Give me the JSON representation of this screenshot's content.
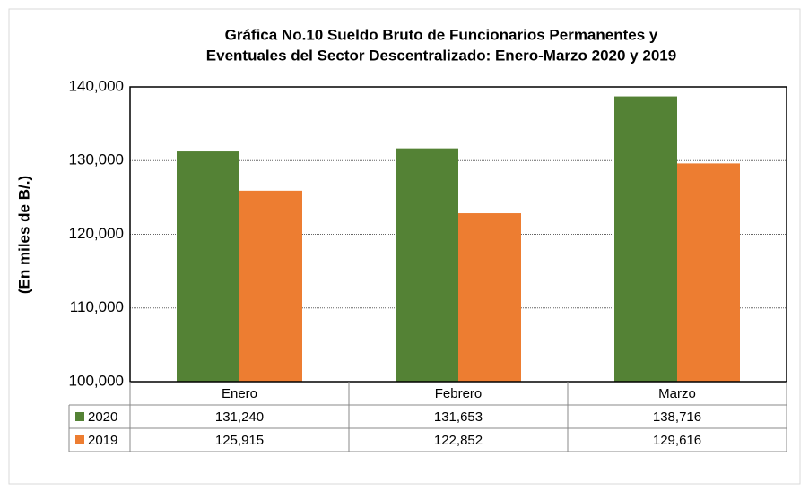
{
  "chart_data": {
    "type": "bar",
    "title": [
      "Gráfica No.10 Sueldo Bruto de Funcionarios Permanentes y",
      "Eventuales del Sector Descentralizado: Enero-Marzo 2020 y 2019"
    ],
    "ylabel": "(En miles de B/.)",
    "categories": [
      "Enero",
      "Febrero",
      "Marzo"
    ],
    "series": [
      {
        "name": "2020",
        "color": "#548235",
        "values": [
          131240,
          131653,
          138716
        ],
        "value_labels": [
          "131,240",
          "131,653",
          "138,716"
        ]
      },
      {
        "name": "2019",
        "color": "#ed7d31",
        "values": [
          125915,
          122852,
          129616
        ],
        "value_labels": [
          "125,915",
          "122,852",
          "129,616"
        ]
      }
    ],
    "ylim": [
      100000,
      140000
    ],
    "yticks": [
      {
        "value": 100000,
        "label": "100,000"
      },
      {
        "value": 110000,
        "label": "110,000"
      },
      {
        "value": 120000,
        "label": "120,000"
      },
      {
        "value": 130000,
        "label": "130,000"
      },
      {
        "value": 140000,
        "label": "140,000"
      }
    ],
    "grid": true
  }
}
